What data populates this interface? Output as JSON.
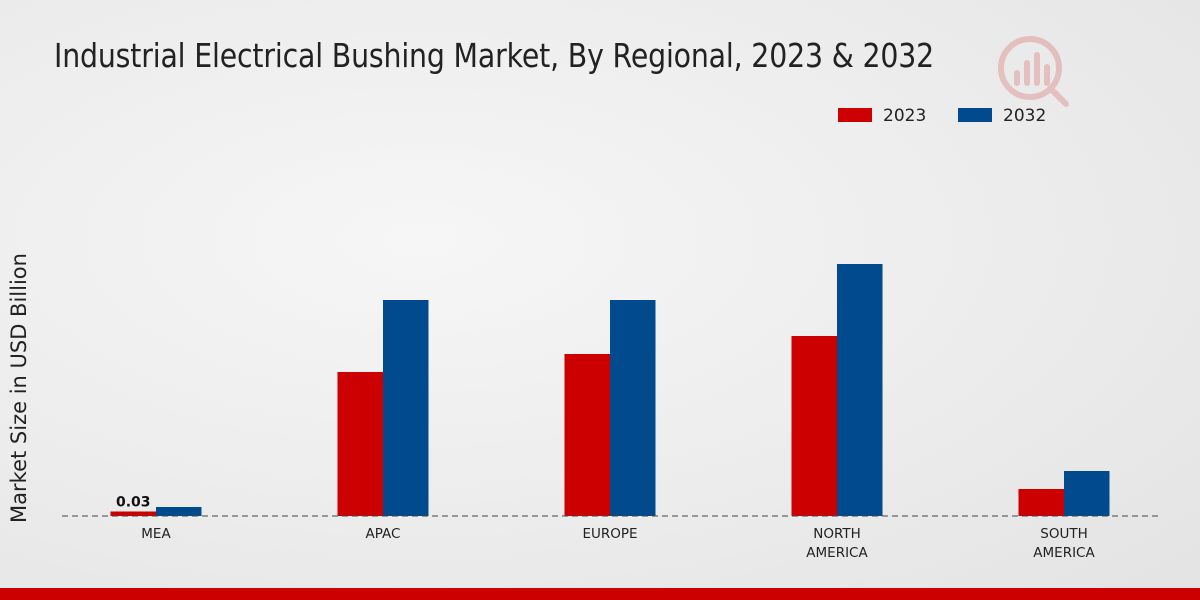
{
  "chart_data": {
    "type": "bar",
    "title": "Industrial Electrical Bushing Market, By Regional, 2023 & 2032",
    "xlabel": "",
    "ylabel": "Market Size in USD Billion",
    "categories": [
      "MEA",
      "APAC",
      "EUROPE",
      "NORTH AMERICA",
      "SOUTH AMERICA"
    ],
    "category_lines": [
      [
        "MEA"
      ],
      [
        "APAC"
      ],
      [
        "EUROPE"
      ],
      [
        "NORTH",
        "AMERICA"
      ],
      [
        "SOUTH",
        "AMERICA"
      ]
    ],
    "series": [
      {
        "name": "2023",
        "color": "#cc0000",
        "values": [
          0.03,
          0.96,
          1.08,
          1.2,
          0.18
        ]
      },
      {
        "name": "2032",
        "color": "#004a8d",
        "values": [
          0.06,
          1.44,
          1.44,
          1.68,
          0.3
        ]
      }
    ],
    "data_labels": [
      {
        "series": "2023",
        "category": "MEA",
        "text": "0.03"
      }
    ],
    "ylim": [
      0,
      2.4
    ],
    "grid": false,
    "legend_position": "top-right"
  }
}
